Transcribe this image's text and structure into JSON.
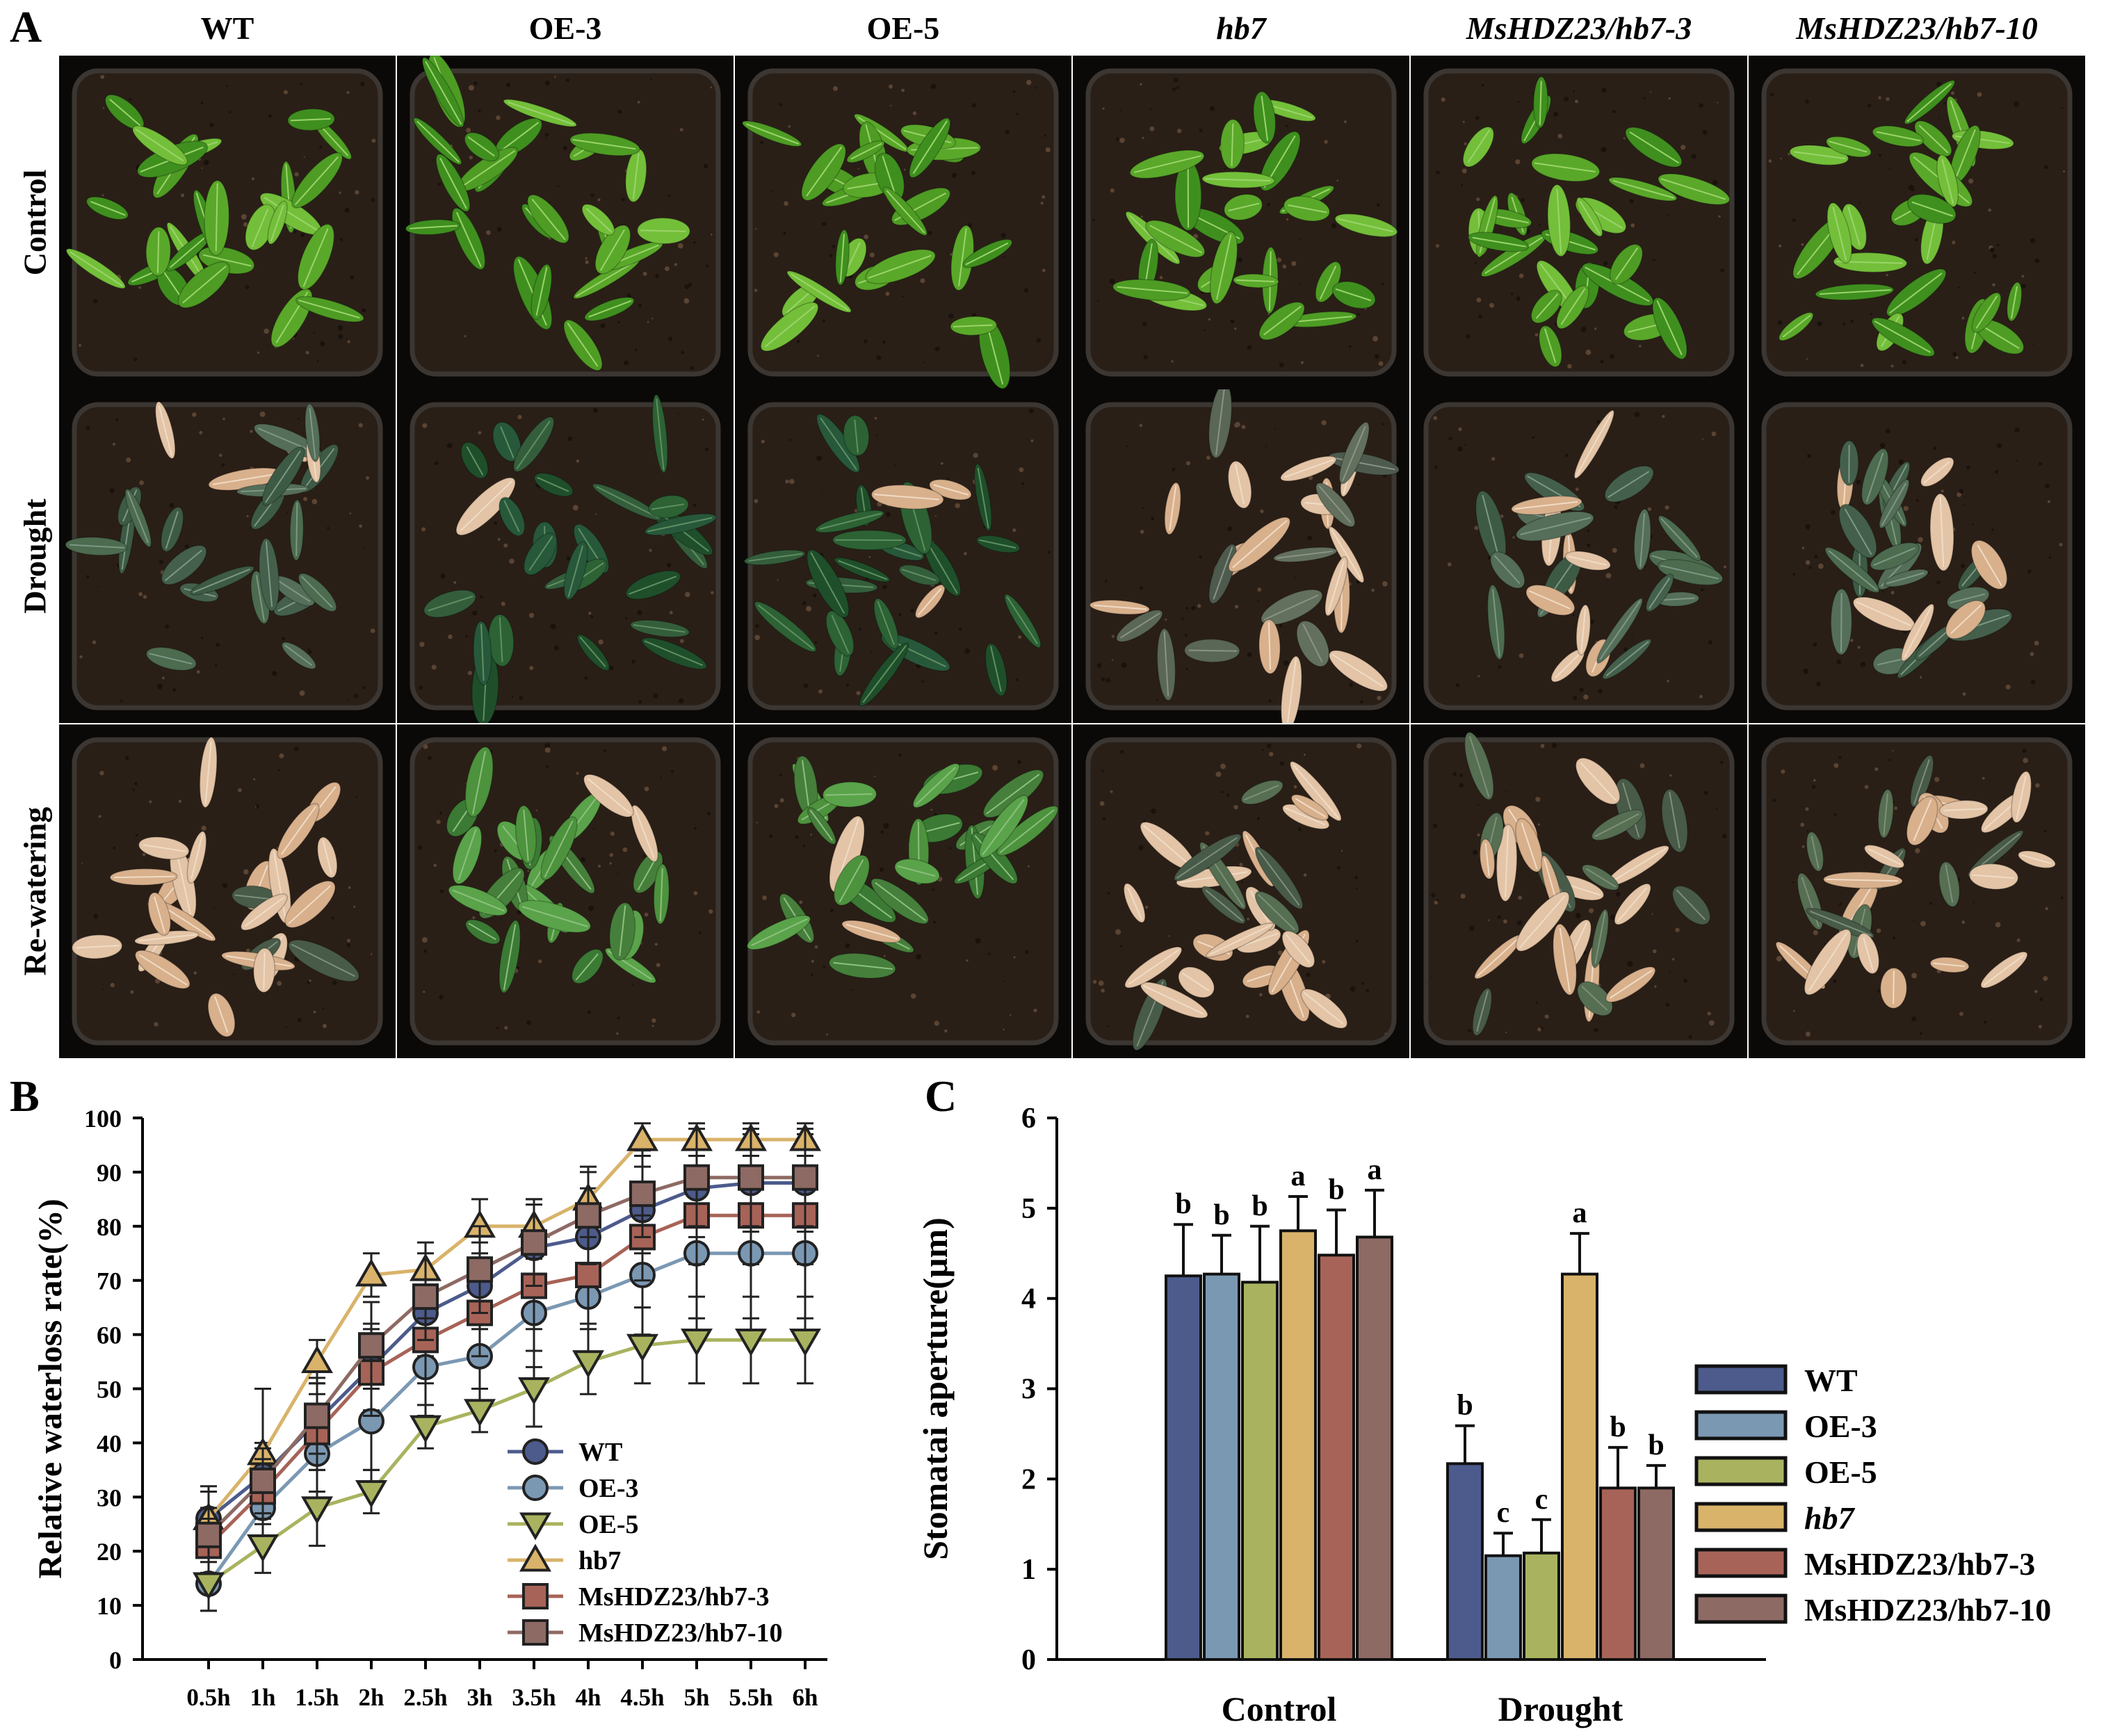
{
  "figure": {
    "panel_labels": [
      "A",
      "B",
      "C"
    ],
    "columns": [
      "WT",
      "OE-3",
      "OE-5",
      "hb7",
      "MsHDZ23/hb7-3",
      "MsHDZ23/hb7-10"
    ],
    "italic_columns": [
      "hb7",
      "MsHDZ23/hb7-3",
      "MsHDZ23/hb7-10"
    ],
    "rows": [
      "Control",
      "Drought",
      "Re-watering"
    ],
    "photo_health": {
      "Control": [
        "green",
        "green",
        "green",
        "green",
        "green",
        "green"
      ],
      "Drought": [
        "mixed",
        "dark-green",
        "dark-green",
        "wilted",
        "mixed",
        "mixed"
      ],
      "Re-watering": [
        "dead",
        "recovered",
        "recovered",
        "dead",
        "dead",
        "dead"
      ]
    }
  },
  "chart_data": [
    {
      "type": "line",
      "panel": "B",
      "title": "",
      "xlabel": "",
      "ylabel": "Relative waterloss rate(%)",
      "x": [
        "0.5h",
        "1h",
        "1.5h",
        "2h",
        "2.5h",
        "3h",
        "3.5h",
        "4h",
        "4.5h",
        "5h",
        "5.5h",
        "6h"
      ],
      "ylim": [
        0,
        100
      ],
      "yticks": [
        0,
        10,
        20,
        30,
        40,
        50,
        60,
        70,
        80,
        90,
        100
      ],
      "legend": "bottom-right",
      "series": [
        {
          "name": "WT",
          "marker": "circle",
          "color": "#4c5b8c",
          "values": [
            26,
            34,
            44,
            54,
            64,
            69,
            76,
            78,
            83,
            87,
            88,
            88
          ],
          "errors": [
            6,
            6,
            7,
            8,
            8,
            8,
            8,
            9,
            8,
            9,
            9,
            9
          ]
        },
        {
          "name": "OE-3",
          "marker": "circle",
          "color": "#7b98b3",
          "values": [
            14,
            28,
            38,
            44,
            54,
            56,
            64,
            67,
            71,
            75,
            75,
            75
          ],
          "errors": [
            5,
            6,
            7,
            9,
            9,
            10,
            10,
            11,
            11,
            12,
            12,
            12
          ]
        },
        {
          "name": "OE-5",
          "marker": "triangle-down",
          "color": "#a9b35f",
          "values": [
            14,
            21,
            28,
            31,
            43,
            46,
            50,
            55,
            58,
            59,
            59,
            59
          ],
          "errors": [
            5,
            5,
            7,
            4,
            4,
            4,
            7,
            6,
            7,
            8,
            8,
            8
          ]
        },
        {
          "name": "hb7",
          "marker": "triangle-up",
          "color": "#d9b36a",
          "values": [
            26,
            38,
            55,
            71,
            72,
            80,
            80,
            85,
            96,
            96,
            96,
            96
          ],
          "errors": [
            5,
            12,
            4,
            4,
            5,
            5,
            5,
            5,
            3,
            3,
            3,
            3
          ]
        },
        {
          "name": "MsHDZ23/hb7-3",
          "marker": "square",
          "color": "#a76357",
          "values": [
            21,
            31,
            42,
            53,
            59,
            64,
            69,
            71,
            78,
            82,
            82,
            82
          ],
          "errors": [
            5,
            6,
            7,
            8,
            8,
            8,
            8,
            9,
            8,
            9,
            9,
            9
          ]
        },
        {
          "name": "MsHDZ23/hb7-10",
          "marker": "square",
          "color": "#8d6a63",
          "values": [
            23,
            33,
            45,
            58,
            67,
            72,
            77,
            82,
            86,
            89,
            89,
            89
          ],
          "errors": [
            5,
            6,
            7,
            8,
            8,
            8,
            8,
            9,
            8,
            9,
            9,
            9
          ]
        }
      ]
    },
    {
      "type": "bar",
      "panel": "C",
      "title": "",
      "xlabel": "",
      "ylabel": "Stomatai aperture(μm)",
      "categories": [
        "Control",
        "Drought"
      ],
      "ylim": [
        0,
        6
      ],
      "yticks": [
        0,
        1,
        2,
        3,
        4,
        5,
        6
      ],
      "legend": "right",
      "series": [
        {
          "name": "WT",
          "color": "#4c5b8c",
          "values": [
            4.25,
            2.17
          ],
          "errors": [
            0.57,
            0.42
          ],
          "letters": [
            "b",
            "b"
          ]
        },
        {
          "name": "OE-3",
          "color": "#7b98b3",
          "values": [
            4.27,
            1.15
          ],
          "errors": [
            0.43,
            0.25
          ],
          "letters": [
            "b",
            "c"
          ]
        },
        {
          "name": "OE-5",
          "color": "#a9b35f",
          "values": [
            4.18,
            1.18
          ],
          "errors": [
            0.62,
            0.37
          ],
          "letters": [
            "b",
            "c"
          ]
        },
        {
          "name": "hb7",
          "color": "#d9b36a",
          "values": [
            4.75,
            4.27
          ],
          "errors": [
            0.38,
            0.45
          ],
          "letters": [
            "a",
            "a"
          ],
          "italic": true
        },
        {
          "name": "MsHDZ23/hb7-3",
          "color": "#a76357",
          "values": [
            4.48,
            1.9
          ],
          "errors": [
            0.5,
            0.45
          ],
          "letters": [
            "b",
            "b"
          ]
        },
        {
          "name": "MsHDZ23/hb7-10",
          "color": "#8d6a63",
          "values": [
            4.68,
            1.9
          ],
          "errors": [
            0.52,
            0.25
          ],
          "letters": [
            "a",
            "b"
          ]
        }
      ]
    }
  ]
}
